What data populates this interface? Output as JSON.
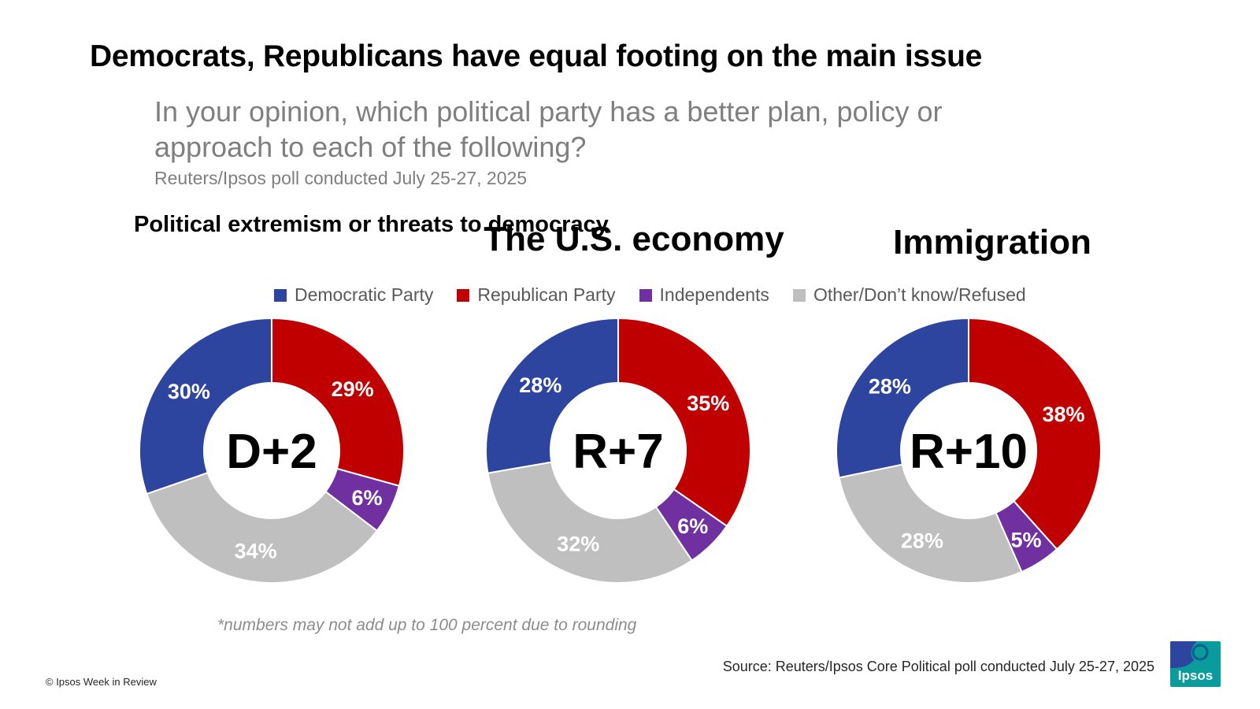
{
  "title": "Democrats, Republicans have equal footing on the main issue",
  "question": "In your opinion, which political party has a better plan, policy or approach to each of the following?",
  "subtitle": "Reuters/Ipsos poll conducted July 25-27, 2025",
  "legend": [
    {
      "label": "Democratic Party",
      "color": "#2e45a0"
    },
    {
      "label": "Republican Party",
      "color": "#c00000"
    },
    {
      "label": "Independents",
      "color": "#7030a0"
    },
    {
      "label": "Other/Don’t know/Refused",
      "color": "#bfbfbf"
    }
  ],
  "chart_data": [
    {
      "type": "pie",
      "title": "Political extremism or threats to democracy",
      "center_label": "D+2",
      "categories": [
        "Republican Party",
        "Independents",
        "Other/Don’t know/Refused",
        "Democratic Party"
      ],
      "values": [
        29,
        6,
        34,
        30
      ],
      "value_labels": [
        "29%",
        "6%",
        "34%",
        "30%"
      ],
      "colors": [
        "#c00000",
        "#7030a0",
        "#bfbfbf",
        "#2e45a0"
      ]
    },
    {
      "type": "pie",
      "title": "The U.S. economy",
      "center_label": "R+7",
      "categories": [
        "Republican Party",
        "Independents",
        "Other/Don’t know/Refused",
        "Democratic Party"
      ],
      "values": [
        35,
        6,
        32,
        28
      ],
      "value_labels": [
        "35%",
        "6%",
        "32%",
        "28%"
      ],
      "colors": [
        "#c00000",
        "#7030a0",
        "#bfbfbf",
        "#2e45a0"
      ]
    },
    {
      "type": "pie",
      "title": "Immigration",
      "center_label": "R+10",
      "categories": [
        "Republican Party",
        "Independents",
        "Other/Don’t know/Refused",
        "Democratic Party"
      ],
      "values": [
        38,
        5,
        28,
        28
      ],
      "value_labels": [
        "38%",
        "5%",
        "28%",
        "28%"
      ],
      "colors": [
        "#c00000",
        "#7030a0",
        "#bfbfbf",
        "#2e45a0"
      ]
    }
  ],
  "footnote": "*numbers may not add up to 100 percent due to rounding",
  "source": "Source: Reuters/Ipsos Core Political poll conducted July 25-27, 2025",
  "copyright": "© Ipsos Week in Review",
  "logo": {
    "text": "Ipsos",
    "icon": "ipsos-logo-icon",
    "color": "#0a9c9c"
  }
}
